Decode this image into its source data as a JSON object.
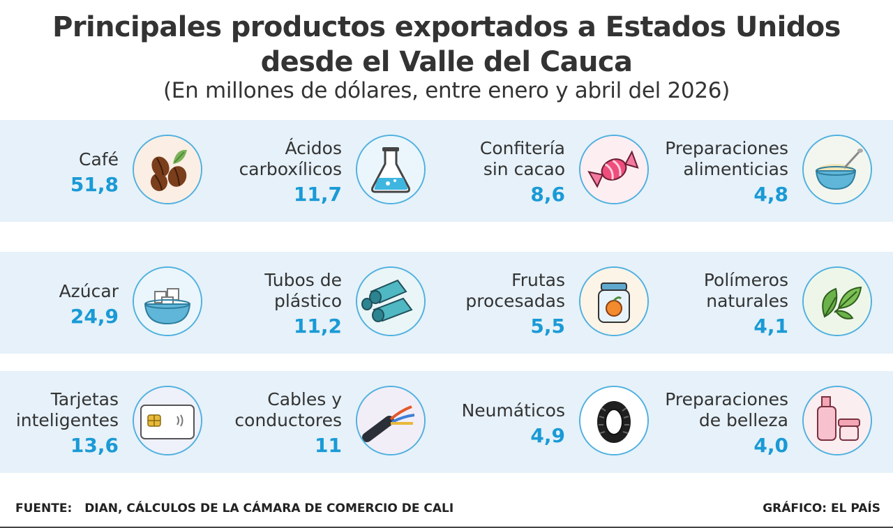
{
  "title_line1": "Principales productos exportados a Estados Unidos",
  "title_line2": "desde el Valle del Cauca",
  "subtitle": "(En millones de dólares, entre enero y abril del 2026)",
  "products": [
    {
      "label_lines": [
        "Café"
      ],
      "value": "51,8",
      "icon": "coffee-beans-icon"
    },
    {
      "label_lines": [
        "Ácidos",
        "carboxílicos"
      ],
      "value": "11,7",
      "icon": "lab-flask-icon"
    },
    {
      "label_lines": [
        "Confitería",
        "sin cacao"
      ],
      "value": "8,6",
      "icon": "candy-icon"
    },
    {
      "label_lines": [
        "Preparaciones",
        "alimenticias"
      ],
      "value": "4,8",
      "icon": "food-bowl-icon"
    },
    {
      "label_lines": [
        "Azúcar"
      ],
      "value": "24,9",
      "icon": "sugar-cubes-icon"
    },
    {
      "label_lines": [
        "Tubos de",
        "plástico"
      ],
      "value": "11,2",
      "icon": "plastic-pipes-icon"
    },
    {
      "label_lines": [
        "Frutas",
        "procesadas"
      ],
      "value": "5,5",
      "icon": "fruit-jar-icon"
    },
    {
      "label_lines": [
        "Polímeros",
        "naturales"
      ],
      "value": "4,1",
      "icon": "leaf-icon"
    },
    {
      "label_lines": [
        "Tarjetas",
        "inteligentes"
      ],
      "value": "13,6",
      "icon": "smart-card-icon"
    },
    {
      "label_lines": [
        "Cables y",
        "conductores"
      ],
      "value": "11",
      "icon": "cable-icon"
    },
    {
      "label_lines": [
        "Neumáticos"
      ],
      "value": "4,9",
      "icon": "tire-icon"
    },
    {
      "label_lines": [
        "Preparaciones",
        "de belleza"
      ],
      "value": "4,0",
      "icon": "cosmetics-icon"
    }
  ],
  "footer": {
    "source_label": "FUENTE:",
    "source_text": "DIAN, CÁLCULOS DE LA CÁMARA DE COMERCIO DE CALI",
    "credit": "GRÁFICO: EL PAÍS"
  },
  "colors": {
    "band": "#e6f1f9",
    "value": "#1a9ad6",
    "circle_border": "#4fb0df",
    "text": "#333333"
  }
}
